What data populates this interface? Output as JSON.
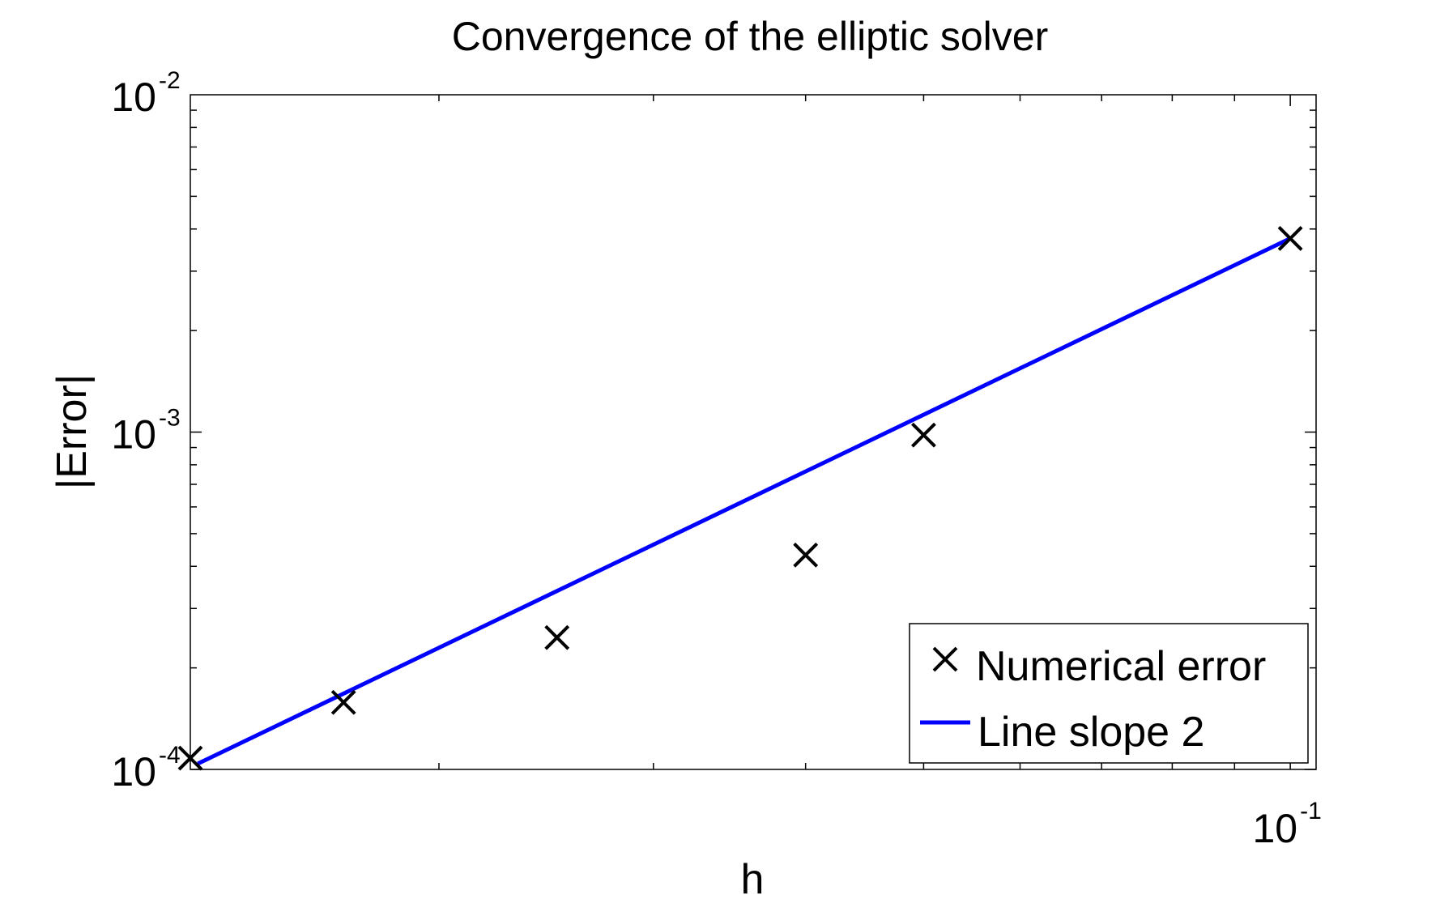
{
  "chart_data": {
    "type": "scatter",
    "title": "Convergence of the elliptic solver",
    "xlabel": "h",
    "ylabel": "|Error|",
    "xscale": "log",
    "yscale": "log",
    "xlim": [
      0.0125,
      0.105
    ],
    "ylim": [
      0.0001,
      0.01
    ],
    "x_ticks": [
      {
        "base": "10",
        "exp": "-1",
        "value": 0.1
      }
    ],
    "y_ticks": [
      {
        "base": "10",
        "exp": "-4",
        "value": 0.0001
      },
      {
        "base": "10",
        "exp": "-3",
        "value": 0.001
      },
      {
        "base": "10",
        "exp": "-2",
        "value": 0.01
      }
    ],
    "grid": false,
    "legend_position": "bottom-right",
    "series": [
      {
        "name": "Numerical error",
        "kind": "marker",
        "marker": "x",
        "color": "#000000",
        "x": [
          0.0125,
          0.0167,
          0.025,
          0.04,
          0.05,
          0.1
        ],
        "y": [
          0.000108,
          0.000158,
          0.000246,
          0.000432,
          0.00098,
          0.00375
        ]
      },
      {
        "name": "Line slope 2",
        "kind": "line",
        "color": "#0000ff",
        "x": [
          0.01268,
          0.1
        ],
        "y": [
          0.000104,
          0.00375
        ]
      }
    ]
  }
}
